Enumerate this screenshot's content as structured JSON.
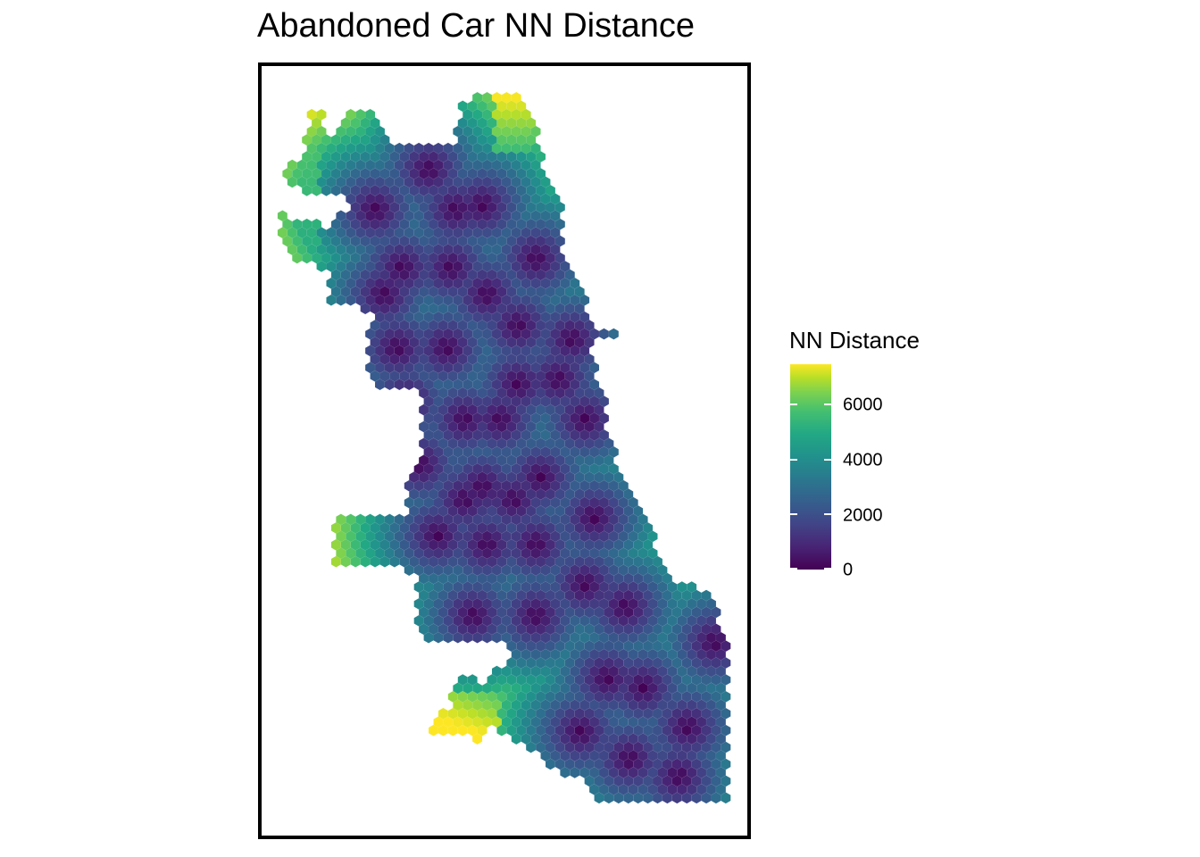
{
  "title": "Abandoned Car NN Distance",
  "legend": {
    "title": "NN Distance",
    "ticks": [
      "0",
      "2000",
      "4000",
      "6000"
    ],
    "tick_values": [
      0,
      2000,
      4000,
      6000
    ],
    "range": [
      0,
      7500
    ],
    "palette": [
      "#440154",
      "#482475",
      "#414487",
      "#355f8d",
      "#2a788e",
      "#21918c",
      "#22a884",
      "#44bf70",
      "#7ad151",
      "#bddf26",
      "#fde725"
    ]
  },
  "chart_data": {
    "type": "heatmap",
    "title": "Abandoned Car NN Distance",
    "legend_title": "NN Distance",
    "value_range": [
      0,
      7500
    ],
    "color_scale": "viridis",
    "legend_placement": "right",
    "grid": false,
    "notes_visible": "hexagonal grid cells colored by nearest-neighbor distance; high values (yellow) in far northwest and far southwest, low values (dark purple) across central and southeast areas"
  }
}
